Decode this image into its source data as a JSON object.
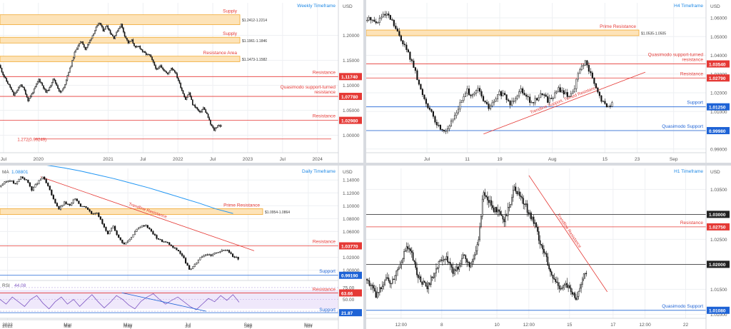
{
  "chart_data": [
    {
      "id": "weekly",
      "type": "candlestick",
      "title": "Weekly Timeframe",
      "currency": "USD",
      "ylim": [
        0.965,
        1.265
      ],
      "y_ticks": [
        "1.20000",
        "1.15000",
        "1.10000",
        "1.05000",
        "1.00000"
      ],
      "y_tick_values": [
        1.2,
        1.15,
        1.1,
        1.05,
        1.0
      ],
      "x_ticks": [
        "Jul",
        "2020",
        "2021",
        "Jul",
        "2022",
        "Jul",
        "2023",
        "Jul",
        "2024"
      ],
      "x_tick_values": [
        2019.5,
        2020.0,
        2021.0,
        2021.5,
        2022.0,
        2022.5,
        2023.0,
        2023.5,
        2024.0
      ],
      "xlim": [
        2019.45,
        2024.3
      ],
      "price_start_x": 2019.45,
      "price_end_x": 2022.63,
      "price_path": [
        1.14,
        1.122,
        1.108,
        1.096,
        1.08,
        1.09,
        1.102,
        1.09,
        1.07,
        1.082,
        1.096,
        1.112,
        1.1,
        1.086,
        1.094,
        1.114,
        1.1,
        1.085,
        1.095,
        1.12,
        1.14,
        1.165,
        1.18,
        1.188,
        1.172,
        1.185,
        1.2,
        1.215,
        1.225,
        1.21,
        1.22,
        1.205,
        1.195,
        1.21,
        1.222,
        1.2,
        1.185,
        1.19,
        1.175,
        1.178,
        1.168,
        1.162,
        1.16,
        1.145,
        1.13,
        1.14,
        1.13,
        1.122,
        1.135,
        1.128,
        1.11,
        1.09,
        1.072,
        1.085,
        1.062,
        1.055,
        1.045,
        1.055,
        1.042,
        1.022,
        1.01,
        1.02,
        1.018
      ],
      "zones": [
        {
          "label": "Supply",
          "range_label": "$1.2412-1.2214",
          "low": 1.2214,
          "high": 1.2412
        },
        {
          "label": "Supply",
          "range_label": "$1.1961-1.1846",
          "low": 1.1846,
          "high": 1.1961
        },
        {
          "label": "Resistance Area",
          "range_label": "$1.1473-1.1582",
          "low": 1.1473,
          "high": 1.1582
        }
      ],
      "levels": [
        {
          "label": "Resistance",
          "value_label": "1.11740",
          "value": 1.1174,
          "color": "#e53935"
        },
        {
          "label": "Quasimodo support-turned resistance",
          "value_label": "1.07780",
          "value": 1.0778,
          "color": "#e53935"
        },
        {
          "label": "Resistance",
          "value_label": "1.02980",
          "value": 1.0298,
          "color": "#e53935"
        }
      ],
      "annotations": [
        {
          "text": "1.272(0.99249)",
          "value": 0.99249
        }
      ]
    },
    {
      "id": "h4",
      "type": "candlestick",
      "title": "H4 Timeframe",
      "currency": "USD",
      "ylim": [
        0.988,
        1.068
      ],
      "y_ticks": [
        "1.06000",
        "1.05000",
        "1.04000",
        "1.03000",
        "1.02000",
        "1.01000",
        "1.00000",
        "0.99000"
      ],
      "y_tick_values": [
        1.06,
        1.05,
        1.04,
        1.03,
        1.02,
        1.01,
        1.0,
        0.99
      ],
      "x_ticks": [
        "Jul",
        "11",
        "19",
        "Aug",
        "15",
        "23",
        "Sep"
      ],
      "x_tick_values": [
        1,
        11,
        19,
        32,
        45,
        53,
        62
      ],
      "xlim": [
        -14,
        70
      ],
      "price_start_x": -14,
      "price_end_x": 47,
      "price_path": [
        1.0585,
        1.06,
        1.057,
        1.0605,
        1.0615,
        1.058,
        1.052,
        1.047,
        1.041,
        1.034,
        1.024,
        1.017,
        1.011,
        1.0045,
        1.001,
        1.0,
        1.004,
        1.01,
        1.016,
        1.021,
        1.018,
        1.022,
        1.016,
        1.012,
        1.015,
        1.02,
        1.018,
        1.014,
        1.018,
        1.022,
        1.019,
        1.014,
        1.017,
        1.02,
        1.016,
        1.018,
        1.022,
        1.02,
        1.018,
        1.023,
        1.033,
        1.036,
        1.03,
        1.022,
        1.016,
        1.0125,
        1.0145
      ],
      "zones": [
        {
          "label": "Prime Resistance",
          "range_label": "$1.0535-1.0505",
          "low": 1.0505,
          "high": 1.0535
        }
      ],
      "levels": [
        {
          "label": "Quasimodo support-turned resistance",
          "value_label": "1.03540",
          "value": 1.0354,
          "color": "#e53935"
        },
        {
          "label": "Resistance",
          "value_label": "1.02790",
          "value": 1.0279,
          "color": "#e53935"
        },
        {
          "label": "Support",
          "value_label": "1.01250",
          "value": 1.0125,
          "color": "#1e63d6"
        },
        {
          "label": "Quasimodo Support",
          "value_label": "0.99980",
          "value": 0.9998,
          "color": "#1e63d6"
        }
      ],
      "trendlines": [
        {
          "label": "Trendline Support, Turned Resistance",
          "from": [
            15,
            0.998
          ],
          "to": [
            55,
            1.031
          ],
          "color": "#e53935"
        }
      ]
    },
    {
      "id": "daily",
      "type": "candlestick",
      "title": "Daily Timeframe",
      "currency": "USD",
      "ma_label": "MA",
      "ma_value": "1.08801",
      "ylim": [
        0.985,
        1.158
      ],
      "y_ticks": [
        "1.14000",
        "1.12000",
        "1.10000",
        "1.08000",
        "1.06000",
        "1.04000",
        "1.02000",
        "1.00000"
      ],
      "y_tick_values": [
        1.14,
        1.12,
        1.1,
        1.08,
        1.06,
        1.04,
        1.02,
        1.0
      ],
      "x_ticks": [
        "2022",
        "Mar",
        "May",
        "Jul",
        "Sep",
        "Nov"
      ],
      "x_tick_values": [
        0,
        2,
        4,
        6,
        8,
        10
      ],
      "xlim": [
        -0.25,
        11
      ],
      "price_start_x": -0.25,
      "price_end_x": 7.7,
      "price_path": [
        1.13,
        1.136,
        1.14,
        1.133,
        1.145,
        1.14,
        1.125,
        1.135,
        1.145,
        1.13,
        1.11,
        1.095,
        1.105,
        1.1,
        1.112,
        1.1,
        1.098,
        1.088,
        1.09,
        1.072,
        1.055,
        1.068,
        1.05,
        1.04,
        1.048,
        1.06,
        1.068,
        1.07,
        1.06,
        1.05,
        1.045,
        1.042,
        1.035,
        1.03,
        1.018,
        1.0,
        1.008,
        1.02,
        1.025,
        1.022,
        1.028,
        1.03,
        1.032,
        1.022,
        1.018
      ],
      "ma_path": [
        1.163,
        1.159,
        1.154,
        1.148,
        1.142,
        1.135,
        1.128,
        1.12,
        1.112,
        1.104,
        1.095,
        1.088
      ],
      "ma_start_x": 1.3,
      "ma_end_x": 7.5,
      "zones": [
        {
          "label": "Prime Resistance",
          "range_label": "$1.0954-1.0864",
          "low": 1.0864,
          "high": 1.0954
        }
      ],
      "levels": [
        {
          "label": "Resistance",
          "value_label": "1.03770",
          "value": 1.0377,
          "color": "#e53935"
        },
        {
          "label": "Support",
          "value_label": "0.99190",
          "value": 0.9919,
          "color": "#1e63d6"
        }
      ],
      "trendlines": [
        {
          "label": "Trendline Resistance",
          "from": [
            1.1,
            1.145
          ],
          "to": [
            8.2,
            1.03
          ],
          "color": "#e53935"
        }
      ],
      "rsi": {
        "label": "RSI",
        "value": "44.08",
        "ylim": [
          10,
          90
        ],
        "y_ticks": [
          "75.00",
          "50.00",
          "25.00"
        ],
        "y_tick_values": [
          75,
          50,
          25
        ],
        "resistance": {
          "label": "Resistance",
          "value_label": "63.66",
          "value": 63.66
        },
        "support": {
          "label": "Support",
          "value_label": "21.87",
          "value": 21.87
        },
        "path": [
          50,
          40,
          55,
          45,
          35,
          50,
          58,
          42,
          30,
          45,
          55,
          40,
          50,
          35,
          48,
          60,
          45,
          32,
          44,
          58,
          50,
          38,
          30,
          46,
          55,
          62,
          50,
          40,
          48,
          55,
          45,
          35,
          28,
          40,
          52,
          45,
          58,
          48,
          60,
          44
        ],
        "trendline": {
          "from": [
            3.8,
            64
          ],
          "to": [
            6.6,
            25
          ]
        }
      }
    },
    {
      "id": "h1",
      "type": "candlestick",
      "title": "H1 Timeframe",
      "currency": "USD",
      "ylim": [
        1.0092,
        1.0392
      ],
      "y_ticks": [
        "1.03500",
        "1.03000",
        "1.02500",
        "1.02000",
        "1.01500",
        "1.01000"
      ],
      "y_tick_values": [
        1.035,
        1.03,
        1.025,
        1.02,
        1.015,
        1.01
      ],
      "x_ticks": [
        "12:00",
        "8",
        "10",
        "12:00",
        "15",
        "17",
        "12:00",
        "22"
      ],
      "x_tick_values": [
        0.4,
        1.1,
        2.05,
        2.6,
        3.3,
        4.05,
        4.6,
        5.3
      ],
      "xlim": [
        -0.2,
        5.65
      ],
      "price_start_x": -0.2,
      "price_end_x": 3.6,
      "price_path": [
        1.017,
        1.016,
        1.0135,
        1.0155,
        1.0175,
        1.016,
        1.0185,
        1.021,
        1.0235,
        1.022,
        1.018,
        1.0165,
        1.015,
        1.0175,
        1.0195,
        1.0215,
        1.021,
        1.0185,
        1.0195,
        1.022,
        1.02,
        1.0205,
        1.025,
        1.035,
        1.0325,
        1.031,
        1.03,
        1.0285,
        1.0315,
        1.0355,
        1.034,
        1.032,
        1.03,
        1.028,
        1.0245,
        1.022,
        1.018,
        1.0165,
        1.0155,
        1.016,
        1.0145,
        1.013,
        1.0165,
        1.0185
      ],
      "levels": [
        {
          "label": "",
          "value_label": "1.03000",
          "value": 1.03,
          "color": "#222222"
        },
        {
          "label": "Resistance",
          "value_label": "1.02750",
          "value": 1.0275,
          "color": "#e53935"
        },
        {
          "label": "",
          "value_label": "1.02000",
          "value": 1.02,
          "color": "#222222"
        },
        {
          "label": "Quasimodo Support",
          "value_label": "1.01080",
          "value": 1.0108,
          "color": "#1e63d6"
        }
      ],
      "trendlines": [
        {
          "label": "Trendline Resistance",
          "from": [
            2.6,
            1.0378
          ],
          "to": [
            3.95,
            1.0145
          ],
          "color": "#e53935"
        }
      ]
    }
  ]
}
